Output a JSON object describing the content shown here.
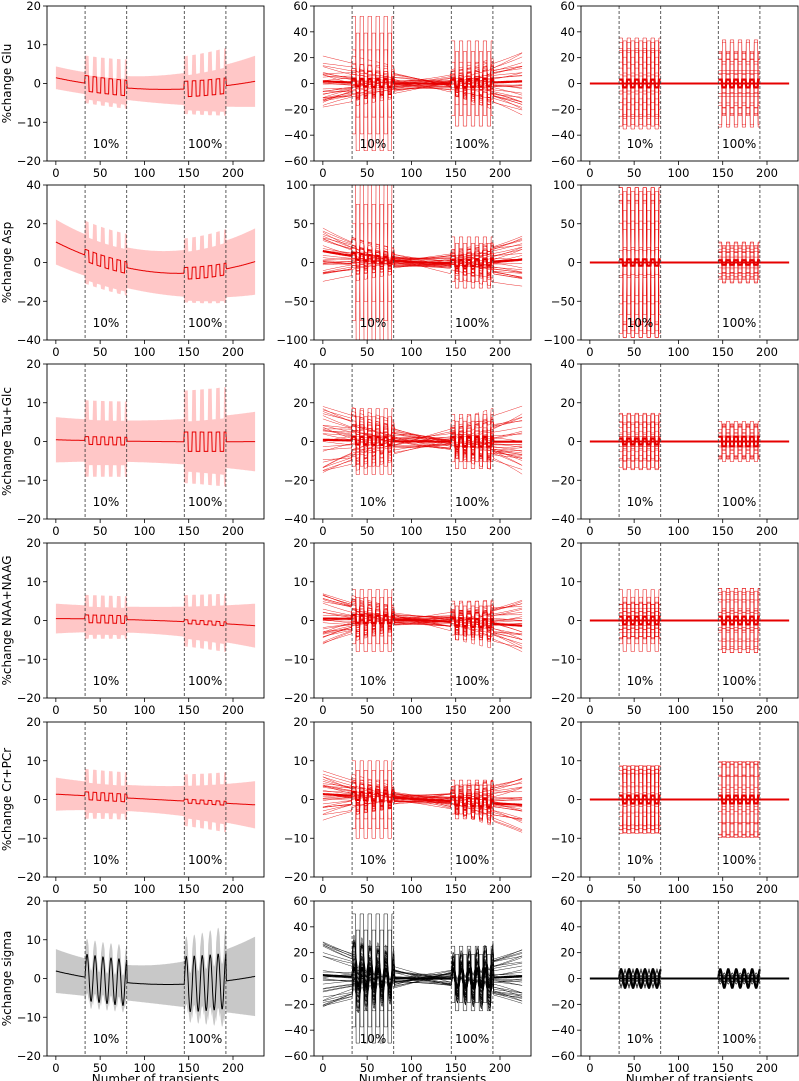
{
  "figure": {
    "xlabel": "Number of transients",
    "column_kinds": [
      "mean_band",
      "spaghetti_dense",
      "spaghetti_boxcar"
    ],
    "phase_labels": [
      "10%",
      "100%"
    ],
    "colors": {
      "red": "#e60000",
      "red_fill": "#ffc7c7",
      "black": "#000000",
      "gray_fill": "#c8c8c8"
    }
  },
  "chart_data": [
    {
      "type": "line",
      "row": 0,
      "col": 0,
      "ylabel": "%change Glu",
      "ylim": [
        -20,
        20
      ],
      "yticks": [
        -20,
        -10,
        0,
        10,
        20
      ],
      "xlim": [
        -10,
        235
      ],
      "xticks": [
        0,
        50,
        100,
        150,
        200
      ],
      "vlines": [
        33,
        80,
        145,
        192
      ],
      "color": "red",
      "trend": [
        2,
        -1.5,
        1
      ],
      "band": [
        3,
        3.5,
        7
      ],
      "amp": [
        2,
        2
      ],
      "stim_band": [
        6,
        6
      ]
    },
    {
      "type": "line",
      "row": 0,
      "col": 1,
      "ylabel": "",
      "ylim": [
        -60,
        60
      ],
      "yticks": [
        -60,
        -40,
        -20,
        0,
        20,
        40,
        60
      ],
      "xlim": [
        -10,
        235
      ],
      "xticks": [
        0,
        50,
        100,
        150,
        200
      ],
      "vlines": [
        33,
        80,
        145,
        192
      ],
      "color": "red",
      "trend": [
        2,
        0,
        2
      ],
      "band": [
        3,
        3.5,
        7
      ],
      "amp": [
        3,
        3
      ],
      "spread": [
        22,
        13,
        30
      ],
      "outlier_box": [
        52,
        33
      ]
    },
    {
      "type": "line",
      "row": 0,
      "col": 2,
      "ylabel": "",
      "ylim": [
        -60,
        60
      ],
      "yticks": [
        -60,
        -40,
        -20,
        0,
        20,
        40,
        60
      ],
      "xlim": [
        -10,
        235
      ],
      "xticks": [
        0,
        50,
        100,
        150,
        200
      ],
      "vlines": [
        33,
        80,
        145,
        192
      ],
      "color": "red",
      "trend": [
        0,
        0,
        0
      ],
      "band": [
        0,
        0,
        0
      ],
      "amp": [
        3,
        3
      ],
      "box": [
        37,
        36
      ]
    },
    {
      "type": "line",
      "row": 1,
      "col": 0,
      "ylabel": "%change Asp",
      "ylim": [
        -40,
        40
      ],
      "yticks": [
        -40,
        -20,
        0,
        20,
        40
      ],
      "xlim": [
        -10,
        235
      ],
      "xticks": [
        0,
        50,
        100,
        150,
        200
      ],
      "vlines": [
        33,
        80,
        145,
        192
      ],
      "color": "red",
      "trend": [
        13,
        -5,
        2
      ],
      "band": [
        12,
        11,
        18
      ],
      "amp": [
        3,
        3
      ],
      "stim_band": [
        10,
        8
      ]
    },
    {
      "type": "line",
      "row": 1,
      "col": 1,
      "ylabel": "",
      "ylim": [
        -100,
        100
      ],
      "yticks": [
        -100,
        -50,
        0,
        50,
        100
      ],
      "xlim": [
        -10,
        235
      ],
      "xticks": [
        0,
        50,
        100,
        150,
        200
      ],
      "vlines": [
        33,
        80,
        145,
        192
      ],
      "color": "red",
      "trend": [
        17,
        0,
        5
      ],
      "band": [
        12,
        11,
        18
      ],
      "amp": [
        4,
        4
      ],
      "spread": [
        45,
        20,
        40
      ],
      "outlier_box": [
        100,
        33
      ]
    },
    {
      "type": "line",
      "row": 1,
      "col": 2,
      "ylabel": "",
      "ylim": [
        -100,
        100
      ],
      "yticks": [
        -100,
        -50,
        0,
        50,
        100
      ],
      "xlim": [
        -10,
        235
      ],
      "xticks": [
        0,
        50,
        100,
        150,
        200
      ],
      "vlines": [
        33,
        80,
        145,
        192
      ],
      "color": "red",
      "trend": [
        0,
        0,
        0
      ],
      "band": [
        0,
        0,
        0
      ],
      "amp": [
        4,
        3
      ],
      "box": [
        100,
        33
      ]
    },
    {
      "type": "line",
      "row": 2,
      "col": 0,
      "ylabel": "%change Tau+Glc",
      "ylim": [
        -20,
        20
      ],
      "yticks": [
        -20,
        -10,
        0,
        10,
        20
      ],
      "xlim": [
        -10,
        235
      ],
      "xticks": [
        0,
        50,
        100,
        150,
        200
      ],
      "vlines": [
        33,
        80,
        145,
        192
      ],
      "color": "red",
      "trend": [
        0.5,
        0,
        0
      ],
      "band": [
        6,
        5.5,
        8
      ],
      "amp": [
        1,
        2.5
      ],
      "stim_band": [
        8,
        11
      ]
    },
    {
      "type": "line",
      "row": 2,
      "col": 1,
      "ylabel": "",
      "ylim": [
        -40,
        40
      ],
      "yticks": [
        -40,
        -20,
        0,
        20,
        40
      ],
      "xlim": [
        -10,
        235
      ],
      "xticks": [
        0,
        50,
        100,
        150,
        200
      ],
      "vlines": [
        33,
        80,
        145,
        192
      ],
      "color": "red",
      "trend": [
        1,
        0,
        0
      ],
      "band": [
        6,
        5.5,
        8
      ],
      "amp": [
        2,
        2.5
      ],
      "spread": [
        20,
        10,
        20
      ],
      "outlier_box": [
        17,
        14
      ]
    },
    {
      "type": "line",
      "row": 2,
      "col": 2,
      "ylabel": "",
      "ylim": [
        -40,
        40
      ],
      "yticks": [
        -40,
        -20,
        0,
        20,
        40
      ],
      "xlim": [
        -10,
        235
      ],
      "xticks": [
        0,
        50,
        100,
        150,
        200
      ],
      "vlines": [
        33,
        80,
        145,
        192
      ],
      "color": "red",
      "trend": [
        0,
        0,
        0
      ],
      "band": [
        0,
        0,
        0
      ],
      "amp": [
        1.5,
        2.5
      ],
      "box": [
        15,
        11
      ]
    },
    {
      "type": "line",
      "row": 3,
      "col": 0,
      "ylabel": "%change NAA+NAAG",
      "ylim": [
        -20,
        20
      ],
      "yticks": [
        -20,
        -10,
        0,
        10,
        20
      ],
      "xlim": [
        -10,
        235
      ],
      "xticks": [
        0,
        50,
        100,
        150,
        200
      ],
      "vlines": [
        33,
        80,
        145,
        192
      ],
      "color": "red",
      "trend": [
        0.5,
        0,
        -1.5
      ],
      "band": [
        4,
        3.5,
        6
      ],
      "amp": [
        1,
        0.5
      ],
      "stim_band": [
        4,
        5
      ]
    },
    {
      "type": "line",
      "row": 3,
      "col": 1,
      "ylabel": "",
      "ylim": [
        -20,
        20
      ],
      "yticks": [
        -20,
        -10,
        0,
        10,
        20
      ],
      "xlim": [
        -10,
        235
      ],
      "xticks": [
        0,
        50,
        100,
        150,
        200
      ],
      "vlines": [
        33,
        80,
        145,
        192
      ],
      "color": "red",
      "trend": [
        0.5,
        0,
        -1.5
      ],
      "band": [
        4,
        3.5,
        6
      ],
      "amp": [
        1,
        1
      ],
      "spread": [
        8,
        4,
        8
      ],
      "outlier_box": [
        8,
        5
      ]
    },
    {
      "type": "line",
      "row": 3,
      "col": 2,
      "ylabel": "",
      "ylim": [
        -20,
        20
      ],
      "yticks": [
        -20,
        -10,
        0,
        10,
        20
      ],
      "xlim": [
        -10,
        235
      ],
      "xticks": [
        0,
        50,
        100,
        150,
        200
      ],
      "vlines": [
        33,
        80,
        145,
        192
      ],
      "color": "red",
      "trend": [
        0,
        0,
        0
      ],
      "band": [
        0,
        0,
        0
      ],
      "amp": [
        1,
        1
      ],
      "box": [
        8,
        9
      ]
    },
    {
      "type": "line",
      "row": 4,
      "col": 0,
      "ylabel": "%change Cr+PCr",
      "ylim": [
        -20,
        20
      ],
      "yticks": [
        -20,
        -10,
        0,
        10,
        20
      ],
      "xlim": [
        -10,
        235
      ],
      "xticks": [
        0,
        50,
        100,
        150,
        200
      ],
      "vlines": [
        33,
        80,
        145,
        192
      ],
      "color": "red",
      "trend": [
        1.5,
        0,
        -1.5
      ],
      "band": [
        4.5,
        3.5,
        6.5
      ],
      "amp": [
        1,
        0.5
      ],
      "stim_band": [
        5,
        5
      ]
    },
    {
      "type": "line",
      "row": 4,
      "col": 1,
      "ylabel": "",
      "ylim": [
        -20,
        20
      ],
      "yticks": [
        -20,
        -10,
        0,
        10,
        20
      ],
      "xlim": [
        -10,
        235
      ],
      "xticks": [
        0,
        50,
        100,
        150,
        200
      ],
      "vlines": [
        33,
        80,
        145,
        192
      ],
      "color": "red",
      "trend": [
        1.5,
        0,
        -1.5
      ],
      "band": [
        4.5,
        3.5,
        6.5
      ],
      "amp": [
        1,
        1
      ],
      "spread": [
        8,
        4,
        8
      ],
      "outlier_box": [
        10,
        5
      ]
    },
    {
      "type": "line",
      "row": 4,
      "col": 2,
      "ylabel": "",
      "ylim": [
        -20,
        20
      ],
      "yticks": [
        -20,
        -10,
        0,
        10,
        20
      ],
      "xlim": [
        -10,
        235
      ],
      "xticks": [
        0,
        50,
        100,
        150,
        200
      ],
      "vlines": [
        33,
        80,
        145,
        192
      ],
      "color": "red",
      "trend": [
        0,
        0,
        0
      ],
      "band": [
        0,
        0,
        0
      ],
      "amp": [
        1,
        1
      ],
      "box": [
        9,
        10
      ]
    },
    {
      "type": "line",
      "row": 5,
      "col": 0,
      "ylabel": "%change sigma",
      "ylim": [
        -20,
        20
      ],
      "yticks": [
        -20,
        -10,
        0,
        10,
        20
      ],
      "xlim": [
        -10,
        235
      ],
      "xticks": [
        0,
        50,
        100,
        150,
        200
      ],
      "vlines": [
        33,
        80,
        145,
        192
      ],
      "color": "black",
      "trend": [
        2.5,
        -1.5,
        1
      ],
      "band": [
        6,
        5,
        11
      ],
      "amp": [
        5,
        6
      ],
      "stim_band": [
        4,
        5
      ],
      "spiky": true
    },
    {
      "type": "line",
      "row": 5,
      "col": 1,
      "ylabel": "",
      "ylim": [
        -60,
        60
      ],
      "yticks": [
        -60,
        -40,
        -20,
        0,
        20,
        40,
        60
      ],
      "xlim": [
        -10,
        235
      ],
      "xticks": [
        0,
        50,
        100,
        150,
        200
      ],
      "vlines": [
        33,
        80,
        145,
        192
      ],
      "color": "black",
      "trend": [
        3,
        0,
        2
      ],
      "band": [
        6,
        5,
        11
      ],
      "amp": [
        6,
        6
      ],
      "spread": [
        30,
        12,
        25
      ],
      "outlier_box": [
        50,
        25
      ],
      "spiky": true
    },
    {
      "type": "line",
      "row": 5,
      "col": 2,
      "ylabel": "",
      "ylim": [
        -60,
        60
      ],
      "yticks": [
        -60,
        -40,
        -20,
        0,
        20,
        40,
        60
      ],
      "xlim": [
        -10,
        235
      ],
      "xticks": [
        0,
        50,
        100,
        150,
        200
      ],
      "vlines": [
        33,
        80,
        145,
        192
      ],
      "color": "black",
      "trend": [
        0,
        0,
        0
      ],
      "band": [
        0,
        0,
        0
      ],
      "amp": [
        6,
        6
      ],
      "box": [
        8,
        5
      ],
      "spiky": true
    }
  ]
}
